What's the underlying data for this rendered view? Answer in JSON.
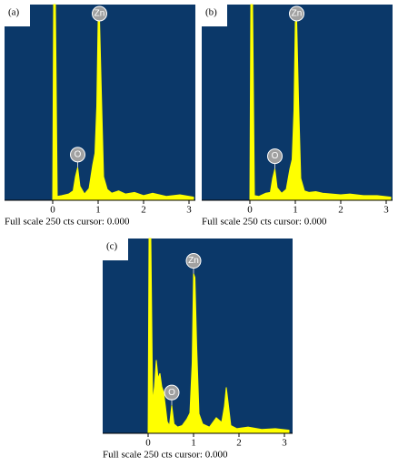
{
  "chart_data": [
    {
      "type": "area",
      "panel": "(a)",
      "footer": "Full scale 250 cts cursor: 0.000",
      "color": "#ffff00",
      "x": [
        0,
        0.02,
        0.06,
        0.1,
        0.2,
        0.35,
        0.45,
        0.5,
        0.55,
        0.6,
        0.7,
        0.8,
        0.88,
        0.93,
        0.97,
        1.0,
        1.03,
        1.07,
        1.12,
        1.2,
        1.3,
        1.45,
        1.6,
        1.8,
        2.0,
        2.2,
        2.5,
        2.8,
        3.1
      ],
      "values": [
        0,
        250,
        250,
        5,
        6,
        8,
        12,
        30,
        42,
        18,
        8,
        15,
        45,
        60,
        120,
        230,
        232,
        140,
        30,
        14,
        9,
        12,
        8,
        10,
        6,
        9,
        5,
        7,
        4
      ],
      "xlim": [
        -1.06,
        3.14
      ],
      "ylim": [
        0,
        250
      ],
      "xticks": [
        0,
        1,
        2,
        3
      ],
      "annotations": [
        {
          "text": "Zn",
          "x": 1.03
        },
        {
          "text": "O",
          "x": 0.55
        }
      ]
    },
    {
      "type": "area",
      "panel": "(b)",
      "footer": "Full scale 250 cts cursor: 0.000",
      "color": "#ffff00",
      "x": [
        0,
        0.02,
        0.06,
        0.1,
        0.2,
        0.35,
        0.45,
        0.5,
        0.55,
        0.6,
        0.7,
        0.8,
        0.88,
        0.93,
        0.97,
        1.0,
        1.03,
        1.07,
        1.12,
        1.2,
        1.3,
        1.45,
        1.6,
        1.8,
        2.0,
        2.2,
        2.5,
        2.8,
        3.1
      ],
      "values": [
        0,
        250,
        250,
        6,
        5,
        9,
        10,
        28,
        40,
        16,
        9,
        14,
        40,
        52,
        115,
        228,
        230,
        130,
        28,
        12,
        10,
        11,
        9,
        8,
        7,
        8,
        6,
        6,
        4
      ],
      "xlim": [
        -1.06,
        3.14
      ],
      "ylim": [
        0,
        250
      ],
      "xticks": [
        0,
        1,
        2,
        3
      ],
      "annotations": [
        {
          "text": "Zn",
          "x": 1.03
        },
        {
          "text": "O",
          "x": 0.55
        }
      ]
    },
    {
      "type": "area",
      "panel": "(c)",
      "footer": "Full scale 250 cts cursor: 0.000",
      "color": "#ffff00",
      "x": [
        0,
        0.02,
        0.06,
        0.1,
        0.14,
        0.18,
        0.22,
        0.26,
        0.3,
        0.34,
        0.38,
        0.42,
        0.47,
        0.52,
        0.57,
        0.65,
        0.75,
        0.85,
        0.92,
        0.97,
        1.0,
        1.03,
        1.07,
        1.12,
        1.2,
        1.35,
        1.5,
        1.62,
        1.68,
        1.72,
        1.76,
        1.82,
        1.95,
        2.2,
        2.5,
        2.8,
        3.1
      ],
      "values": [
        0,
        250,
        250,
        40,
        60,
        94,
        70,
        77,
        60,
        53,
        35,
        15,
        10,
        36,
        12,
        8,
        10,
        18,
        26,
        90,
        205,
        200,
        110,
        25,
        12,
        8,
        20,
        14,
        35,
        59,
        40,
        10,
        6,
        8,
        5,
        6,
        4
      ],
      "xlim": [
        -1.0,
        3.18
      ],
      "ylim": [
        0,
        250
      ],
      "xticks": [
        0,
        1,
        2,
        3
      ],
      "annotations": [
        {
          "text": "Zn",
          "x": 1.0
        },
        {
          "text": "O",
          "x": 0.52
        }
      ]
    }
  ]
}
